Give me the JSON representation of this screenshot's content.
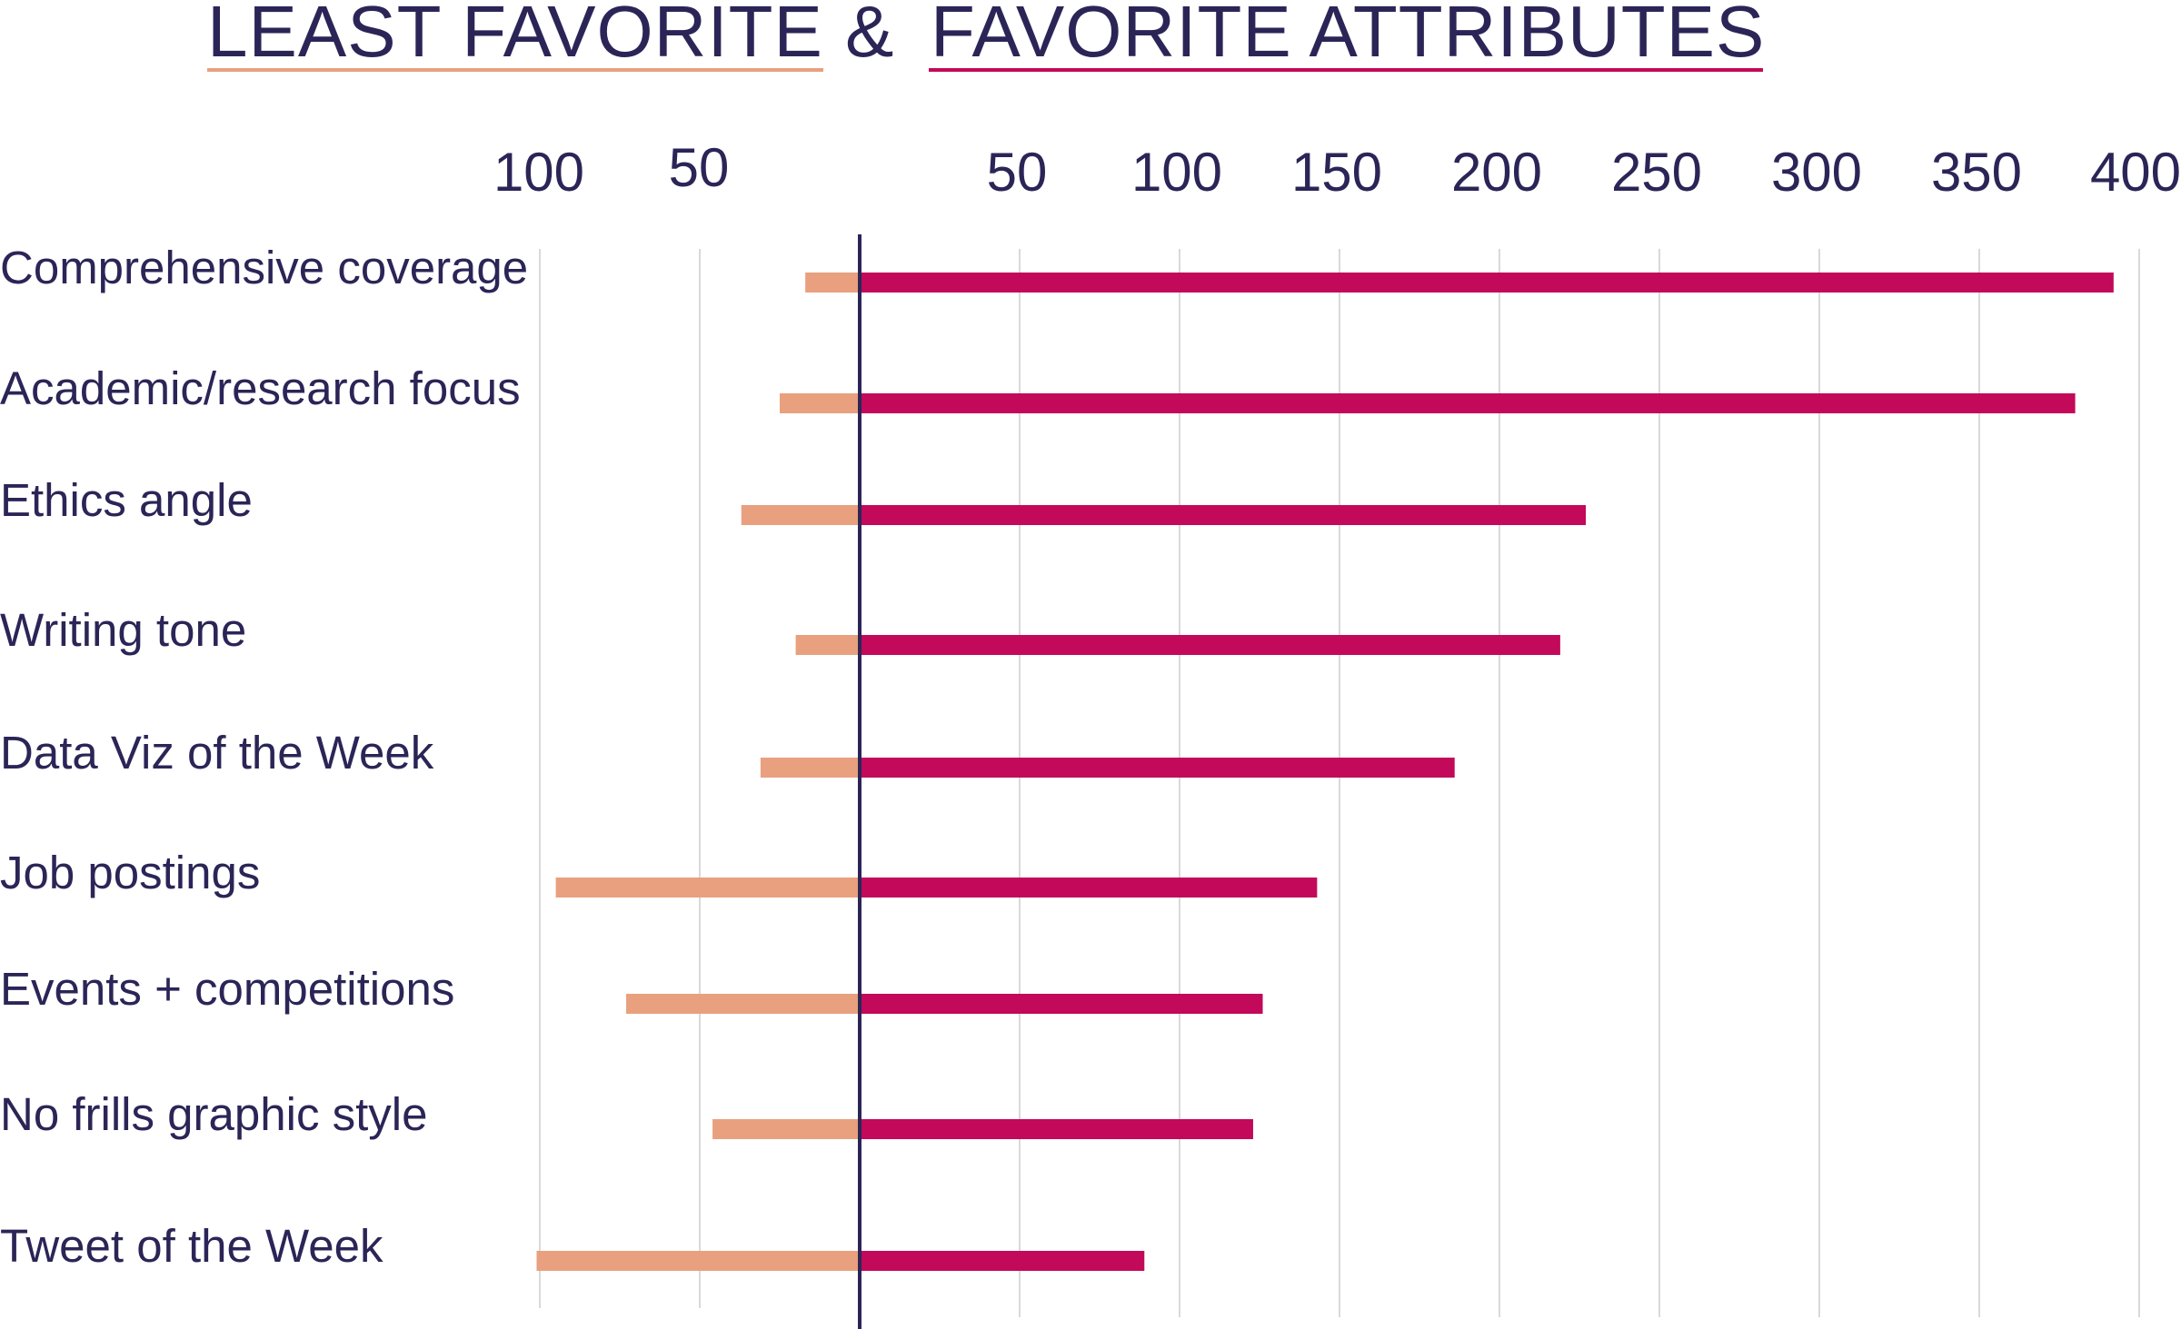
{
  "chart_data": {
    "type": "bar",
    "orientation": "horizontal-diverging",
    "title_parts": [
      "LEAST FAVORITE",
      "&",
      "FAVORITE ATTRIBUTES"
    ],
    "categories": [
      "Comprehensive coverage",
      "Academic/research focus",
      "Ethics angle",
      "Writing tone",
      "Data Viz of the Week",
      "Job postings",
      "Events + competitions",
      "No frills graphic style",
      "Tweet of the Week"
    ],
    "series": [
      {
        "name": "LEAST FAVORITE",
        "direction": "left",
        "values": [
          17,
          25,
          37,
          20,
          31,
          95,
          73,
          46,
          101
        ]
      },
      {
        "name": "FAVORITE ATTRIBUTES",
        "direction": "right",
        "values": [
          392,
          380,
          227,
          219,
          186,
          143,
          126,
          123,
          89
        ]
      }
    ],
    "left_ticks": [
      "100",
      "50"
    ],
    "right_ticks": [
      "50",
      "100",
      "150",
      "200",
      "250",
      "300",
      "350",
      "400"
    ],
    "xlim_left": [
      0,
      100
    ],
    "xlim_right": [
      0,
      400
    ],
    "grid": true,
    "colors": {
      "least": "#e8a07e",
      "favorite": "#c2095a",
      "axis": "#2b2557",
      "text": "#2b2557",
      "grid": "#d9d9d9"
    }
  }
}
